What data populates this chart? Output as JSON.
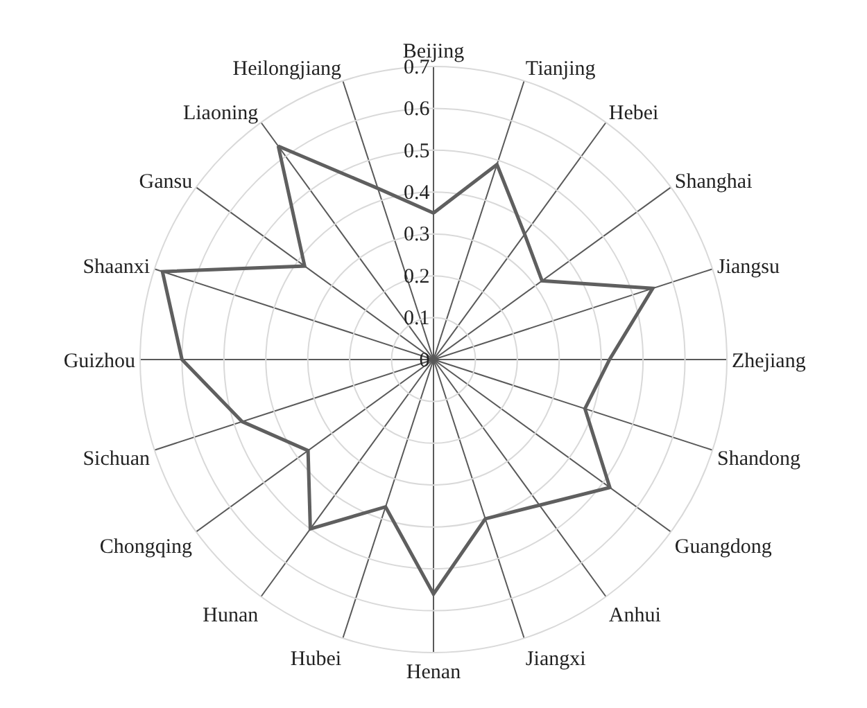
{
  "chart_data": {
    "type": "radar",
    "categories": [
      "Beijing",
      "Tianjing",
      "Hebei",
      "Shanghai",
      "Jiangsu",
      "Zhejiang",
      "Shandong",
      "Guangdong",
      "Anhui",
      "Jiangxi",
      "Henan",
      "Hubei",
      "Hunan",
      "Chongqing",
      "Sichuan",
      "Guizhou",
      "Shaanxi",
      "Gansu",
      "Liaoning",
      "Heilongjiang"
    ],
    "series": [
      {
        "color": "#5f5f5f",
        "values": [
          0.35,
          0.49,
          0.37,
          0.32,
          0.55,
          0.42,
          0.38,
          0.52,
          0.43,
          0.4,
          0.56,
          0.37,
          0.5,
          0.37,
          0.48,
          0.6,
          0.68,
          0.38,
          0.63,
          0.43
        ]
      }
    ],
    "ylim": [
      0,
      0.7
    ],
    "yticks": [
      0,
      0.1,
      0.2,
      0.3,
      0.4,
      0.5,
      0.6,
      0.7
    ],
    "grid": true,
    "marker": "none",
    "line_style": "solid"
  }
}
